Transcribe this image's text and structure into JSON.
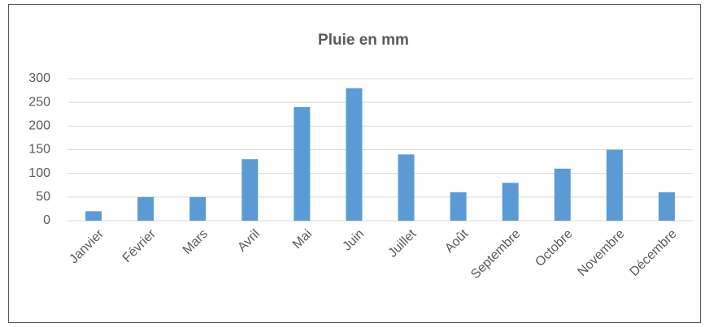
{
  "chart_data": {
    "type": "bar",
    "title": "Pluie en mm",
    "categories": [
      "Janvier",
      "Février",
      "Mars",
      "Avril",
      "Mai",
      "Juin",
      "Juillet",
      "Août",
      "Septembre",
      "Octobre",
      "Novembre",
      "Décembre"
    ],
    "values": [
      20,
      50,
      50,
      130,
      240,
      280,
      140,
      60,
      80,
      110,
      150,
      60
    ],
    "color": "#5b9bd5",
    "ylim": [
      0,
      300
    ],
    "yticks": [
      0,
      50,
      100,
      150,
      200,
      250,
      300
    ],
    "grid": true
  }
}
